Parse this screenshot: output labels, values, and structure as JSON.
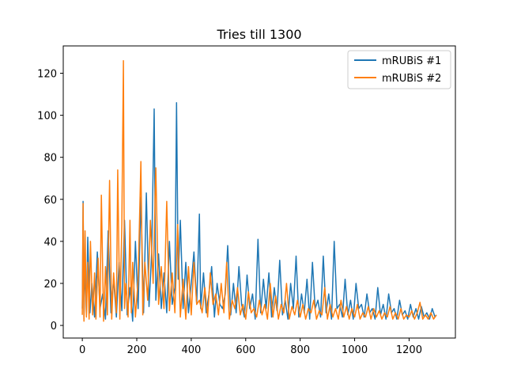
{
  "chart_data": {
    "type": "line",
    "title": "Tries till 1300",
    "xlabel": "",
    "ylabel": "",
    "xlim": [
      -70,
      1370
    ],
    "ylim": [
      -6,
      133
    ],
    "xticks": [
      0,
      200,
      400,
      600,
      800,
      1000,
      1200
    ],
    "xtick_labels": [
      "0",
      "200",
      "400",
      "600",
      "800",
      "1000",
      "1200"
    ],
    "yticks": [
      0,
      20,
      40,
      60,
      80,
      100,
      120
    ],
    "ytick_labels": [
      "0",
      "20",
      "40",
      "60",
      "80",
      "100",
      "120"
    ],
    "legend_position": "top-right",
    "series": [
      {
        "name": "mRUBiS #1",
        "color": "#1f77b4",
        "x": [
          0,
          3,
          6,
          10,
          15,
          20,
          28,
          35,
          45,
          55,
          65,
          75,
          85,
          95,
          105,
          115,
          125,
          135,
          145,
          155,
          165,
          175,
          185,
          195,
          205,
          215,
          225,
          235,
          245,
          255,
          264,
          270,
          280,
          290,
          300,
          310,
          320,
          330,
          340,
          346,
          352,
          360,
          370,
          380,
          390,
          400,
          410,
          420,
          430,
          435,
          445,
          455,
          465,
          475,
          485,
          495,
          505,
          515,
          525,
          534,
          545,
          555,
          565,
          575,
          585,
          595,
          605,
          615,
          625,
          635,
          645,
          655,
          665,
          675,
          685,
          695,
          705,
          715,
          725,
          735,
          745,
          755,
          765,
          775,
          785,
          795,
          805,
          815,
          825,
          835,
          845,
          855,
          865,
          875,
          885,
          895,
          905,
          915,
          925,
          935,
          945,
          955,
          965,
          975,
          985,
          995,
          1005,
          1015,
          1025,
          1035,
          1045,
          1055,
          1065,
          1075,
          1085,
          1095,
          1105,
          1115,
          1125,
          1135,
          1145,
          1155,
          1165,
          1175,
          1185,
          1195,
          1205,
          1215,
          1225,
          1235,
          1245,
          1255,
          1265,
          1275,
          1285,
          1295,
          1300
        ],
        "y": [
          8,
          59,
          3,
          30,
          5,
          42,
          6,
          20,
          4,
          35,
          8,
          15,
          3,
          45,
          6,
          22,
          4,
          30,
          7,
          50,
          5,
          18,
          2,
          40,
          8,
          61,
          6,
          63,
          9,
          35,
          103,
          12,
          34,
          8,
          25,
          6,
          40,
          10,
          18,
          106,
          22,
          50,
          8,
          30,
          6,
          20,
          35,
          10,
          53,
          8,
          25,
          6,
          15,
          28,
          4,
          20,
          10,
          8,
          15,
          38,
          5,
          20,
          6,
          28,
          10,
          4,
          24,
          8,
          15,
          3,
          41,
          6,
          22,
          8,
          25,
          4,
          18,
          7,
          31,
          5,
          12,
          3,
          20,
          8,
          33,
          4,
          15,
          6,
          22,
          3,
          30,
          8,
          12,
          4,
          33,
          6,
          15,
          3,
          40,
          8,
          10,
          4,
          22,
          5,
          12,
          3,
          20,
          8,
          10,
          4,
          15,
          6,
          8,
          3,
          18,
          5,
          10,
          3,
          15,
          6,
          8,
          3,
          12,
          5,
          7,
          3,
          10,
          4,
          8,
          3,
          9,
          4,
          6,
          3,
          8,
          4,
          5
        ]
      },
      {
        "name": "mRUBiS #2",
        "color": "#ff7f0e",
        "x": [
          0,
          3,
          6,
          10,
          15,
          20,
          25,
          30,
          38,
          45,
          50,
          58,
          65,
          70,
          78,
          85,
          92,
          100,
          108,
          115,
          125,
          130,
          138,
          145,
          151,
          155,
          160,
          168,
          175,
          180,
          185,
          195,
          205,
          215,
          222,
          230,
          240,
          250,
          260,
          270,
          280,
          290,
          300,
          310,
          320,
          330,
          340,
          350,
          360,
          370,
          380,
          390,
          400,
          410,
          420,
          430,
          440,
          450,
          460,
          470,
          480,
          490,
          500,
          510,
          520,
          530,
          540,
          550,
          560,
          570,
          580,
          590,
          600,
          610,
          620,
          630,
          640,
          650,
          660,
          670,
          680,
          690,
          700,
          710,
          720,
          730,
          740,
          750,
          760,
          770,
          780,
          790,
          800,
          810,
          820,
          830,
          840,
          850,
          860,
          870,
          880,
          890,
          900,
          910,
          920,
          930,
          940,
          950,
          960,
          970,
          980,
          990,
          1000,
          1010,
          1020,
          1030,
          1040,
          1050,
          1060,
          1070,
          1080,
          1090,
          1100,
          1110,
          1120,
          1130,
          1140,
          1150,
          1160,
          1170,
          1180,
          1190,
          1200,
          1210,
          1220,
          1230,
          1240,
          1250,
          1260,
          1270,
          1280,
          1290,
          1300
        ],
        "y": [
          5,
          58,
          2,
          45,
          4,
          30,
          3,
          40,
          5,
          25,
          3,
          32,
          4,
          62,
          2,
          28,
          5,
          69,
          3,
          25,
          6,
          74,
          3,
          48,
          126,
          8,
          20,
          4,
          50,
          6,
          30,
          4,
          22,
          78,
          5,
          30,
          12,
          50,
          20,
          75,
          10,
          28,
          8,
          59,
          7,
          25,
          6,
          48,
          4,
          22,
          3,
          28,
          5,
          30,
          10,
          12,
          6,
          18,
          4,
          25,
          10,
          15,
          5,
          20,
          6,
          30,
          3,
          12,
          8,
          18,
          5,
          10,
          3,
          16,
          6,
          8,
          4,
          12,
          5,
          10,
          3,
          20,
          4,
          14,
          3,
          10,
          6,
          20,
          3,
          9,
          5,
          12,
          4,
          10,
          3,
          8,
          6,
          12,
          3,
          7,
          5,
          18,
          3,
          10,
          4,
          8,
          3,
          12,
          4,
          9,
          3,
          8,
          4,
          10,
          3,
          6,
          4,
          9,
          3,
          8,
          4,
          7,
          3,
          6,
          4,
          9,
          3,
          6,
          3,
          8,
          3,
          5,
          4,
          7,
          3,
          6,
          11,
          3,
          5,
          3,
          6,
          3,
          5
        ]
      }
    ]
  }
}
